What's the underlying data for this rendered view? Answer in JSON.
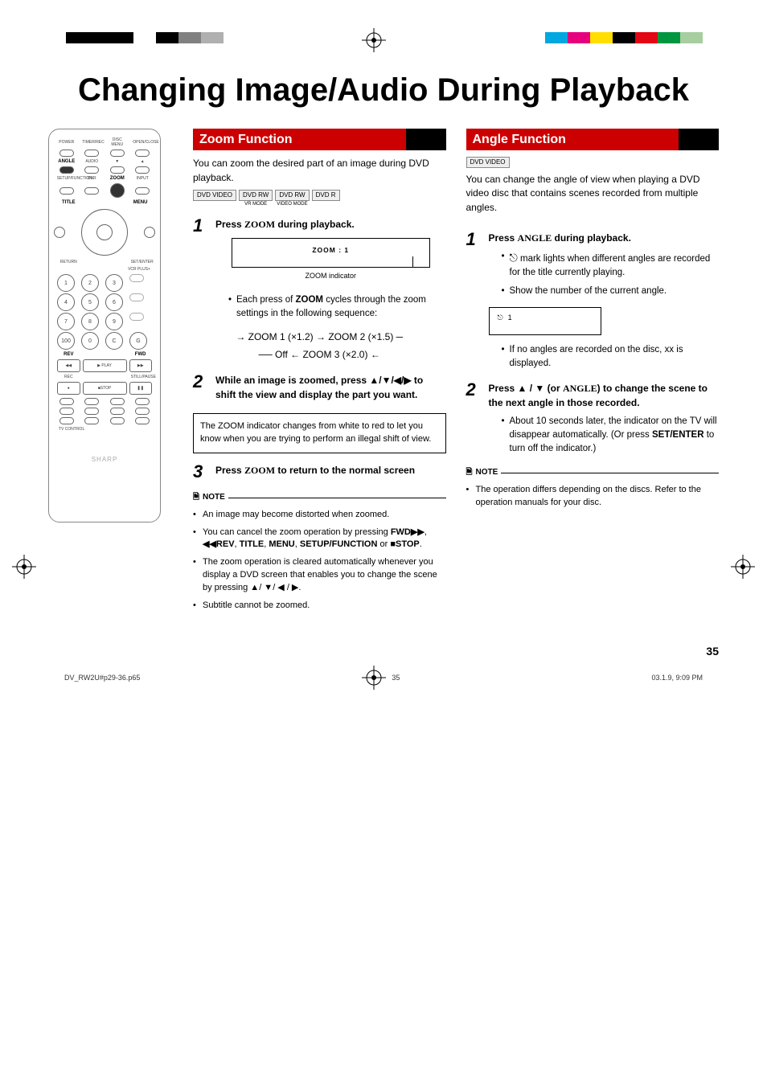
{
  "page": {
    "title": "Changing Image/Audio During Playback",
    "number": "35",
    "footer_file": "DV_RW2U#p29-36.p65",
    "footer_page": "35",
    "footer_date": "03.1.9, 9:09 PM"
  },
  "colorbars": {
    "left": [
      "#000000",
      "#000000",
      "#000000",
      "#ffffff",
      "#000000",
      "#808080",
      "#b0b0b0"
    ],
    "right": [
      "#00a7e0",
      "#e6007e",
      "#ffde00",
      "#000000",
      "#e30613",
      "#009640",
      "#a6ce9e"
    ]
  },
  "remote": {
    "brand": "SHARP",
    "highlighted": [
      "ANGLE",
      "ZOOM"
    ],
    "toprow": [
      "POWER",
      "TIMER/REC",
      "DISC MENU",
      "OPEN/CLOSE"
    ],
    "row2": [
      "ANGLE",
      "AUDIO",
      "▼",
      "CH",
      "▲"
    ],
    "row3": [
      "SETUP/FUNCTION",
      "DNR",
      "ZOOM",
      "INPUT"
    ],
    "row4_left": "TITLE",
    "row4_right": "MENU",
    "row5_left": "RETURN",
    "row5_right": "SET/ENTER",
    "vcr_label": "VCR PLUS+",
    "timer_label": "TIMER PROG.",
    "rec_label": "REC MODE",
    "numpad": [
      "1",
      "2",
      "3",
      "",
      "4",
      "5",
      "6",
      "",
      "7",
      "8",
      "9",
      "",
      "100",
      "0",
      "C",
      "G"
    ],
    "erase_label": "ERASE",
    "prog_label": "PROGRAM",
    "rev": "REV",
    "fwd": "FWD",
    "play": "▶ PLAY",
    "stop": "■STOP",
    "still": "STILL/PAUSE",
    "rec": "REC",
    "bottom_rows": [
      [
        "SKIP SEARCH",
        "▶▶| F.ADV",
        "▶|▶| SUB SPOT",
        "",
        "S×OL OFF"
      ],
      [
        "DISPLAY",
        "ON SCREEN",
        "ORIGINAL/PLAYLIST",
        "EDIT"
      ],
      [
        "POWER",
        "INPUT",
        "▤",
        "VOL ▤"
      ]
    ],
    "tvcontrol": "TV CONTROL",
    "ch_label": "CH"
  },
  "zoom": {
    "header": "Zoom Function",
    "intro": "You can zoom the desired part of an image during DVD playback.",
    "tags": [
      {
        "t": "DVD VIDEO",
        "s": ""
      },
      {
        "t": "DVD RW",
        "s": "VR MODE"
      },
      {
        "t": "DVD RW",
        "s": "VIDEO MODE"
      },
      {
        "t": "DVD R",
        "s": ""
      }
    ],
    "step1_a": "Press ",
    "step1_b": "ZOOM",
    "step1_c": " during playback.",
    "indicator_text": "ZOOM : 1",
    "indicator_label": "ZOOM indicator",
    "bullet1_a": "Each press of ",
    "bullet1_b": "ZOOM",
    "bullet1_c": " cycles through the zoom settings in the following sequence:",
    "seq_line1": "→ ZOOM 1 (×1.2) → ZOOM 2 (×1.5) ─",
    "seq_line2": "── Off ← ZOOM 3 (×2.0) ←",
    "step2": "While an image is zoomed, press ▲/▼/◀/▶ to shift the view and display the part you want.",
    "infobox": "The ZOOM indicator changes from white to red to let you know when you are trying to perform an illegal shift of view.",
    "step3_a": "Press ",
    "step3_b": "ZOOM",
    "step3_c": " to return to the normal screen",
    "note_label": "NOTE",
    "notes": [
      "An image may become distorted when zoomed.",
      "You can cancel the zoom operation by pressing <b>FWD▶▶</b>, <b>◀◀REV</b>, <b>TITLE</b>, <b>MENU</b>, <b>SETUP/FUNCTION</b> or <b>■STOP</b>.",
      "The zoom operation is cleared automatically whenever you display a DVD screen that enables you to change the scene by pressing ▲/ ▼/ ◀ / ▶.",
      "Subtitle cannot be zoomed."
    ]
  },
  "angle": {
    "header": "Angle Function",
    "tag": "DVD VIDEO",
    "intro": "You can change the angle of view when playing a DVD video disc that contains scenes recorded from multiple angles.",
    "step1_a": "Press ",
    "step1_b": "ANGLE",
    "step1_c": " during playback.",
    "bullet1": "  mark lights when different angles are recorded for the title currently playing.",
    "bullet2": "Show the number of the current angle.",
    "display_val": "1",
    "bullet3": "If no angles are recorded on the disc, xx is displayed.",
    "step2": "Press ▲ / ▼ (or ANGLE) to change the scene to the next angle in those recorded.",
    "bullet4_a": "About 10 seconds later, the indicator on the TV will disappear automatically. (Or press ",
    "bullet4_b": "SET/ENTER",
    "bullet4_c": " to turn off the indicator.)",
    "note_label": "NOTE",
    "notes": [
      "The operation differs depending on the discs. Refer to the operation manuals for your disc."
    ]
  }
}
